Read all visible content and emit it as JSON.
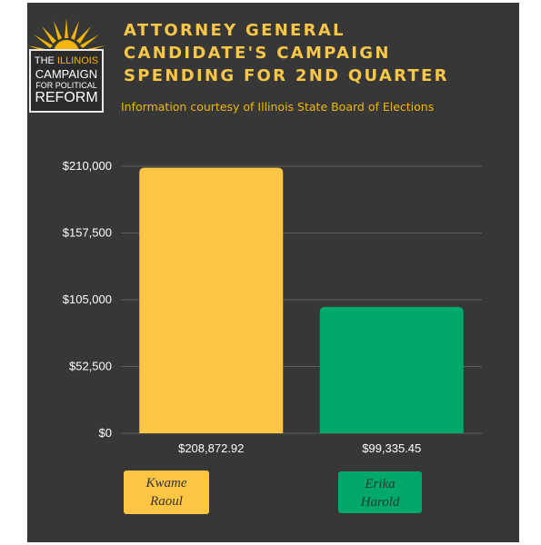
{
  "logo": {
    "line1_a": "THE",
    "line1_b": "ILLINOIS",
    "line2": "CAMPAIGN",
    "line3": "FOR POLITICAL",
    "line4": "REFORM"
  },
  "title_lines": [
    "ATTORNEY GENERAL",
    "CANDIDATE'S CAMPAIGN",
    "SPENDING FOR 2ND QUARTER"
  ],
  "subtitle": "Information courtesy of Illinois State Board of Elections",
  "colors": {
    "background": "#373737",
    "accent": "#f9c748",
    "kwame": "#fcc544",
    "erika": "#00a86b"
  },
  "chart_data": {
    "type": "bar",
    "title": "ATTORNEY GENERAL CANDIDATE'S CAMPAIGN SPENDING FOR 2ND QUARTER",
    "categories": [
      "Kwame Raoul",
      "Erika Harold"
    ],
    "category_lines": [
      [
        "Kwame",
        "Raoul"
      ],
      [
        "Erika",
        "Harold"
      ]
    ],
    "values": [
      208872.92,
      99335.45
    ],
    "value_labels": [
      "$208,872.92",
      "$99,335.45"
    ],
    "ylim": [
      0,
      210000
    ],
    "yticks": [
      0,
      52500,
      105000,
      157500,
      210000
    ],
    "ytick_labels": [
      "$0",
      "$52,500",
      "$105,000",
      "$157,500",
      "$210,000"
    ],
    "grid": true,
    "bar_colors": [
      "#fcc544",
      "#00a86b"
    ]
  }
}
